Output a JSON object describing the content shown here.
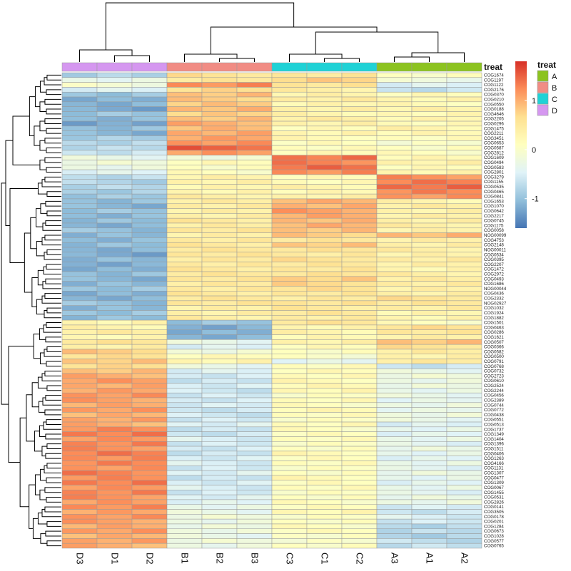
{
  "chart_data": {
    "type": "heatmap",
    "title": "",
    "columns": [
      "D3",
      "D1",
      "D2",
      "B1",
      "B2",
      "B3",
      "C3",
      "C1",
      "C2",
      "A3",
      "A1",
      "A2"
    ],
    "column_groups": [
      "D",
      "D",
      "D",
      "B",
      "B",
      "B",
      "C",
      "C",
      "C",
      "A",
      "A",
      "A"
    ],
    "annotation": {
      "title": "treat",
      "levels": [
        {
          "name": "A",
          "color": "#8CC320"
        },
        {
          "name": "B",
          "color": "#F18C84"
        },
        {
          "name": "C",
          "color": "#1FD2D6"
        },
        {
          "name": "D",
          "color": "#D597F0"
        }
      ]
    },
    "colorbar": {
      "ticks": [
        1,
        0,
        -1
      ],
      "range": [
        -1.6,
        1.8
      ],
      "colors": [
        "#4575B4",
        "#91BFDB",
        "#E0F3F8",
        "#FFFFBF",
        "#FEE090",
        "#FC8D59",
        "#D73027"
      ]
    },
    "grid_color": "#999999",
    "rows": [
      {
        "label": "COG1674",
        "g": [
          -0.8,
          0.6,
          0.5,
          0.1
        ]
      },
      {
        "label": "COG1197",
        "g": [
          -0.3,
          0.5,
          0.8,
          -0.2
        ]
      },
      {
        "label": "COG1122",
        "g": [
          -0.1,
          1.2,
          0.6,
          -0.5
        ]
      },
      {
        "label": "COG2176",
        "g": [
          -0.5,
          0.7,
          0.4,
          -0.7
        ]
      },
      {
        "label": "COG0370",
        "g": [
          -1.0,
          0.9,
          0.3,
          0.2
        ]
      },
      {
        "label": "COG0210",
        "g": [
          -1.1,
          0.8,
          0.4,
          0.3
        ]
      },
      {
        "label": "COG0550",
        "g": [
          -1.1,
          0.8,
          0.3,
          0.2
        ]
      },
      {
        "label": "COG0188",
        "g": [
          -1.2,
          0.9,
          0.4,
          0.3
        ]
      },
      {
        "label": "COG4646",
        "g": [
          -1.0,
          0.8,
          0.3,
          0.2
        ]
      },
      {
        "label": "COG2205",
        "g": [
          -1.1,
          0.9,
          0.4,
          0.3
        ]
      },
      {
        "label": "COG0296",
        "g": [
          -1.2,
          1.0,
          0.3,
          0.2
        ]
      },
      {
        "label": "COG1475",
        "g": [
          -1.0,
          0.9,
          0.2,
          0.3
        ]
      },
      {
        "label": "COG2211",
        "g": [
          -1.1,
          1.0,
          0.3,
          0.2
        ]
      },
      {
        "label": "COG3451",
        "g": [
          -0.9,
          1.1,
          0.2,
          0.1
        ]
      },
      {
        "label": "COG0653",
        "g": [
          -0.8,
          1.2,
          0.1,
          0.0
        ]
      },
      {
        "label": "COG0587",
        "g": [
          -0.7,
          1.5,
          0.1,
          0.1
        ]
      },
      {
        "label": "COG2812",
        "g": [
          -0.6,
          1.1,
          0.2,
          0.1
        ]
      },
      {
        "label": "COG1609",
        "g": [
          -0.3,
          -0.2,
          1.4,
          0.2
        ]
      },
      {
        "label": "COG0494",
        "g": [
          -0.2,
          0.2,
          1.3,
          0.3
        ]
      },
      {
        "label": "COG0583",
        "g": [
          -0.3,
          0.1,
          1.4,
          0.2
        ]
      },
      {
        "label": "COG2801",
        "g": [
          -0.4,
          0.1,
          1.2,
          0.3
        ]
      },
      {
        "label": "COG3279",
        "g": [
          -0.7,
          0.3,
          0.2,
          1.2
        ]
      },
      {
        "label": "COG1155",
        "g": [
          -0.8,
          0.3,
          0.2,
          1.3
        ]
      },
      {
        "label": "COG0535",
        "g": [
          -0.8,
          0.3,
          0.3,
          1.4
        ]
      },
      {
        "label": "COG0465",
        "g": [
          -0.9,
          0.3,
          0.2,
          1.3
        ]
      },
      {
        "label": "COG0841",
        "g": [
          -0.9,
          0.4,
          0.3,
          1.2
        ]
      },
      {
        "label": "COG1653",
        "g": [
          -1.0,
          0.4,
          1.0,
          0.3
        ]
      },
      {
        "label": "COG1070",
        "g": [
          -1.1,
          0.4,
          1.0,
          0.4
        ]
      },
      {
        "label": "COG0642",
        "g": [
          -1.0,
          0.4,
          1.1,
          0.3
        ]
      },
      {
        "label": "COG2217",
        "g": [
          -1.1,
          0.4,
          1.0,
          0.4
        ]
      },
      {
        "label": "COG0745",
        "g": [
          -1.0,
          0.5,
          0.9,
          0.4
        ]
      },
      {
        "label": "COG1175",
        "g": [
          -1.1,
          0.4,
          1.0,
          0.4
        ]
      },
      {
        "label": "COG0058",
        "g": [
          -1.0,
          0.5,
          0.9,
          0.3
        ]
      },
      {
        "label": "NOG00099",
        "g": [
          -1.1,
          0.4,
          0.8,
          0.9
        ]
      },
      {
        "label": "COG4753",
        "g": [
          -1.1,
          0.5,
          0.5,
          0.4
        ]
      },
      {
        "label": "COG2148",
        "g": [
          -1.0,
          0.5,
          0.8,
          0.4
        ]
      },
      {
        "label": "NOG00011",
        "g": [
          -1.1,
          0.5,
          0.6,
          0.4
        ]
      },
      {
        "label": "COG0534",
        "g": [
          -1.2,
          0.5,
          0.5,
          0.3
        ]
      },
      {
        "label": "COG0395",
        "g": [
          -1.1,
          0.5,
          0.6,
          0.4
        ]
      },
      {
        "label": "COG2207",
        "g": [
          -1.2,
          0.5,
          0.5,
          0.4
        ]
      },
      {
        "label": "COG1472",
        "g": [
          -1.1,
          0.5,
          0.5,
          0.3
        ]
      },
      {
        "label": "COG2972",
        "g": [
          -1.0,
          0.5,
          0.6,
          0.4
        ]
      },
      {
        "label": "COG0493",
        "g": [
          -1.1,
          0.5,
          0.8,
          0.4
        ]
      },
      {
        "label": "COG1686",
        "g": [
          -1.1,
          0.5,
          0.7,
          0.4
        ]
      },
      {
        "label": "NOG00044",
        "g": [
          -1.0,
          0.5,
          0.6,
          0.4
        ]
      },
      {
        "label": "COG0436",
        "g": [
          -1.1,
          0.5,
          0.5,
          0.4
        ]
      },
      {
        "label": "COG2332",
        "g": [
          -1.1,
          0.5,
          0.5,
          0.6
        ]
      },
      {
        "label": "NOG02927",
        "g": [
          -1.0,
          0.5,
          0.6,
          0.5
        ]
      },
      {
        "label": "COG1032",
        "g": [
          -1.1,
          0.4,
          0.5,
          0.4
        ]
      },
      {
        "label": "COG1924",
        "g": [
          -1.0,
          0.4,
          0.5,
          0.3
        ]
      },
      {
        "label": "COG1882",
        "g": [
          -1.0,
          0.4,
          0.4,
          0.3
        ]
      },
      {
        "label": "COG1501",
        "g": [
          0.3,
          -1.0,
          0.6,
          0.1
        ]
      },
      {
        "label": "COG0463",
        "g": [
          0.3,
          -1.2,
          0.3,
          0.6
        ]
      },
      {
        "label": "COG0286",
        "g": [
          0.4,
          -1.1,
          0.3,
          0.5
        ]
      },
      {
        "label": "COG1621",
        "g": [
          0.2,
          -1.1,
          0.2,
          0.4
        ]
      },
      {
        "label": "COG0507",
        "g": [
          0.6,
          -0.3,
          0.3,
          0.9
        ]
      },
      {
        "label": "COG0366",
        "g": [
          0.4,
          -0.5,
          0.2,
          0.6
        ]
      },
      {
        "label": "COG0582",
        "g": [
          0.8,
          -0.2,
          0.1,
          0.4
        ]
      },
      {
        "label": "COG0500",
        "g": [
          0.6,
          0.2,
          0.0,
          0.3
        ]
      },
      {
        "label": "COG0791",
        "g": [
          0.8,
          0.3,
          -0.4,
          0.5
        ]
      },
      {
        "label": "COG0768",
        "g": [
          0.7,
          -0.3,
          0.1,
          -0.6
        ]
      },
      {
        "label": "COG0732",
        "g": [
          0.9,
          -0.5,
          0.2,
          -0.3
        ]
      },
      {
        "label": "COG2723",
        "g": [
          1.0,
          -0.6,
          0.2,
          -0.2
        ]
      },
      {
        "label": "COG0610",
        "g": [
          1.1,
          -0.6,
          0.2,
          -0.3
        ]
      },
      {
        "label": "COG2524",
        "g": [
          1.0,
          -0.5,
          0.2,
          -0.2
        ]
      },
      {
        "label": "COG2244",
        "g": [
          1.1,
          -0.6,
          0.2,
          -0.3
        ]
      },
      {
        "label": "COG0456",
        "g": [
          1.2,
          -0.6,
          0.1,
          -0.3
        ]
      },
      {
        "label": "COG2389",
        "g": [
          1.1,
          -0.6,
          0.2,
          -0.4
        ]
      },
      {
        "label": "COG0744",
        "g": [
          1.0,
          -0.5,
          0.1,
          -0.3
        ]
      },
      {
        "label": "COG0772",
        "g": [
          1.1,
          -0.6,
          0.2,
          -0.3
        ]
      },
      {
        "label": "COG0438",
        "g": [
          1.0,
          -0.6,
          0.1,
          -0.2
        ]
      },
      {
        "label": "COG0551",
        "g": [
          1.1,
          -0.6,
          0.1,
          -0.3
        ]
      },
      {
        "label": "COG0513",
        "g": [
          1.0,
          -0.5,
          0.2,
          -0.5
        ]
      },
      {
        "label": "COG1737",
        "g": [
          1.2,
          -0.6,
          0.1,
          -0.4
        ]
      },
      {
        "label": "COG1349",
        "g": [
          1.3,
          -0.6,
          0.1,
          -0.4
        ]
      },
      {
        "label": "COG1404",
        "g": [
          1.2,
          -0.5,
          0.1,
          -0.3
        ]
      },
      {
        "label": "COG1396",
        "g": [
          1.3,
          -0.6,
          0.1,
          -0.4
        ]
      },
      {
        "label": "COG1511",
        "g": [
          1.2,
          -0.6,
          0.1,
          -0.3
        ]
      },
      {
        "label": "COG0406",
        "g": [
          1.3,
          -0.6,
          0.2,
          -0.4
        ]
      },
      {
        "label": "COG1263",
        "g": [
          1.2,
          -0.5,
          0.1,
          -0.4
        ]
      },
      {
        "label": "COG4166",
        "g": [
          1.3,
          -0.5,
          0.1,
          -0.3
        ]
      },
      {
        "label": "COG1131",
        "g": [
          1.2,
          -0.6,
          0.1,
          -0.4
        ]
      },
      {
        "label": "COG1307",
        "g": [
          1.3,
          -0.5,
          0.1,
          -0.3
        ]
      },
      {
        "label": "COG0477",
        "g": [
          1.2,
          -0.6,
          0.2,
          -0.4
        ]
      },
      {
        "label": "COG1309",
        "g": [
          1.3,
          -0.5,
          0.1,
          -0.4
        ]
      },
      {
        "label": "COG0067",
        "g": [
          1.2,
          -0.5,
          0.1,
          -0.3
        ]
      },
      {
        "label": "COG1455",
        "g": [
          1.3,
          -0.6,
          0.1,
          -0.4
        ]
      },
      {
        "label": "COG0531",
        "g": [
          1.2,
          -0.5,
          0.1,
          -0.3
        ]
      },
      {
        "label": "COG2826",
        "g": [
          1.1,
          -0.4,
          0.1,
          -0.3
        ]
      },
      {
        "label": "COG0141",
        "g": [
          1.2,
          -0.3,
          0.1,
          -0.5
        ]
      },
      {
        "label": "COG3505",
        "g": [
          1.1,
          -0.3,
          0.2,
          -0.6
        ]
      },
      {
        "label": "COG0178",
        "g": [
          1.2,
          -0.2,
          0.1,
          -0.5
        ]
      },
      {
        "label": "COG0201",
        "g": [
          1.1,
          -0.3,
          0.1,
          -0.6
        ]
      },
      {
        "label": "COG1284",
        "g": [
          1.0,
          -0.2,
          0.1,
          -0.8
        ]
      },
      {
        "label": "COG0673",
        "g": [
          1.1,
          -0.2,
          0.1,
          -0.7
        ]
      },
      {
        "label": "COG1028",
        "g": [
          1.0,
          -0.3,
          0.0,
          -0.8
        ]
      },
      {
        "label": "COG0577",
        "g": [
          1.1,
          -0.2,
          0.0,
          -0.7
        ]
      },
      {
        "label": "COG0765",
        "g": [
          1.0,
          -0.3,
          0.1,
          -0.7
        ]
      }
    ]
  }
}
